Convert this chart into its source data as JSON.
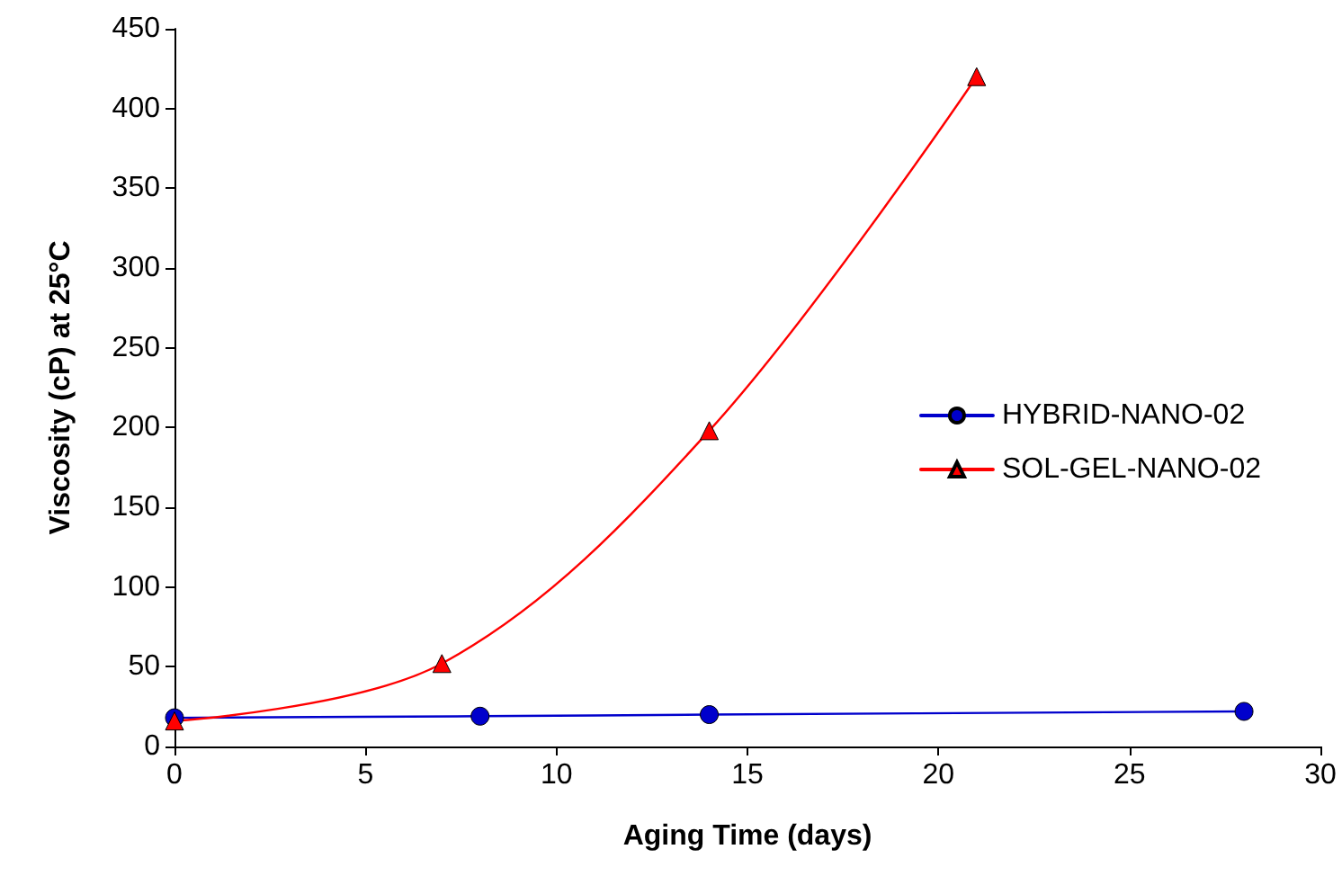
{
  "chart_data": {
    "type": "line",
    "xlabel": "Aging Time (days)",
    "ylabel": "Viscosity (cP) at 25°C",
    "xlim": [
      0,
      30
    ],
    "xticks": [
      0,
      5,
      10,
      15,
      20,
      25,
      30
    ],
    "ylim": [
      0,
      450
    ],
    "yticks": [
      0,
      50,
      100,
      150,
      200,
      250,
      300,
      350,
      400,
      450
    ],
    "grid": false,
    "legend": "right",
    "series": [
      {
        "name": "HYBRID-NANO-02",
        "color": "#0000cc",
        "marker": "circle",
        "x": [
          0,
          8,
          14,
          28
        ],
        "values": [
          18,
          19,
          20,
          22
        ]
      },
      {
        "name": "SOL-GEL-NANO-02",
        "color": "#ff0000",
        "marker": "triangle",
        "x": [
          0,
          7,
          14,
          21
        ],
        "values": [
          16,
          52,
          198,
          420
        ]
      }
    ]
  }
}
